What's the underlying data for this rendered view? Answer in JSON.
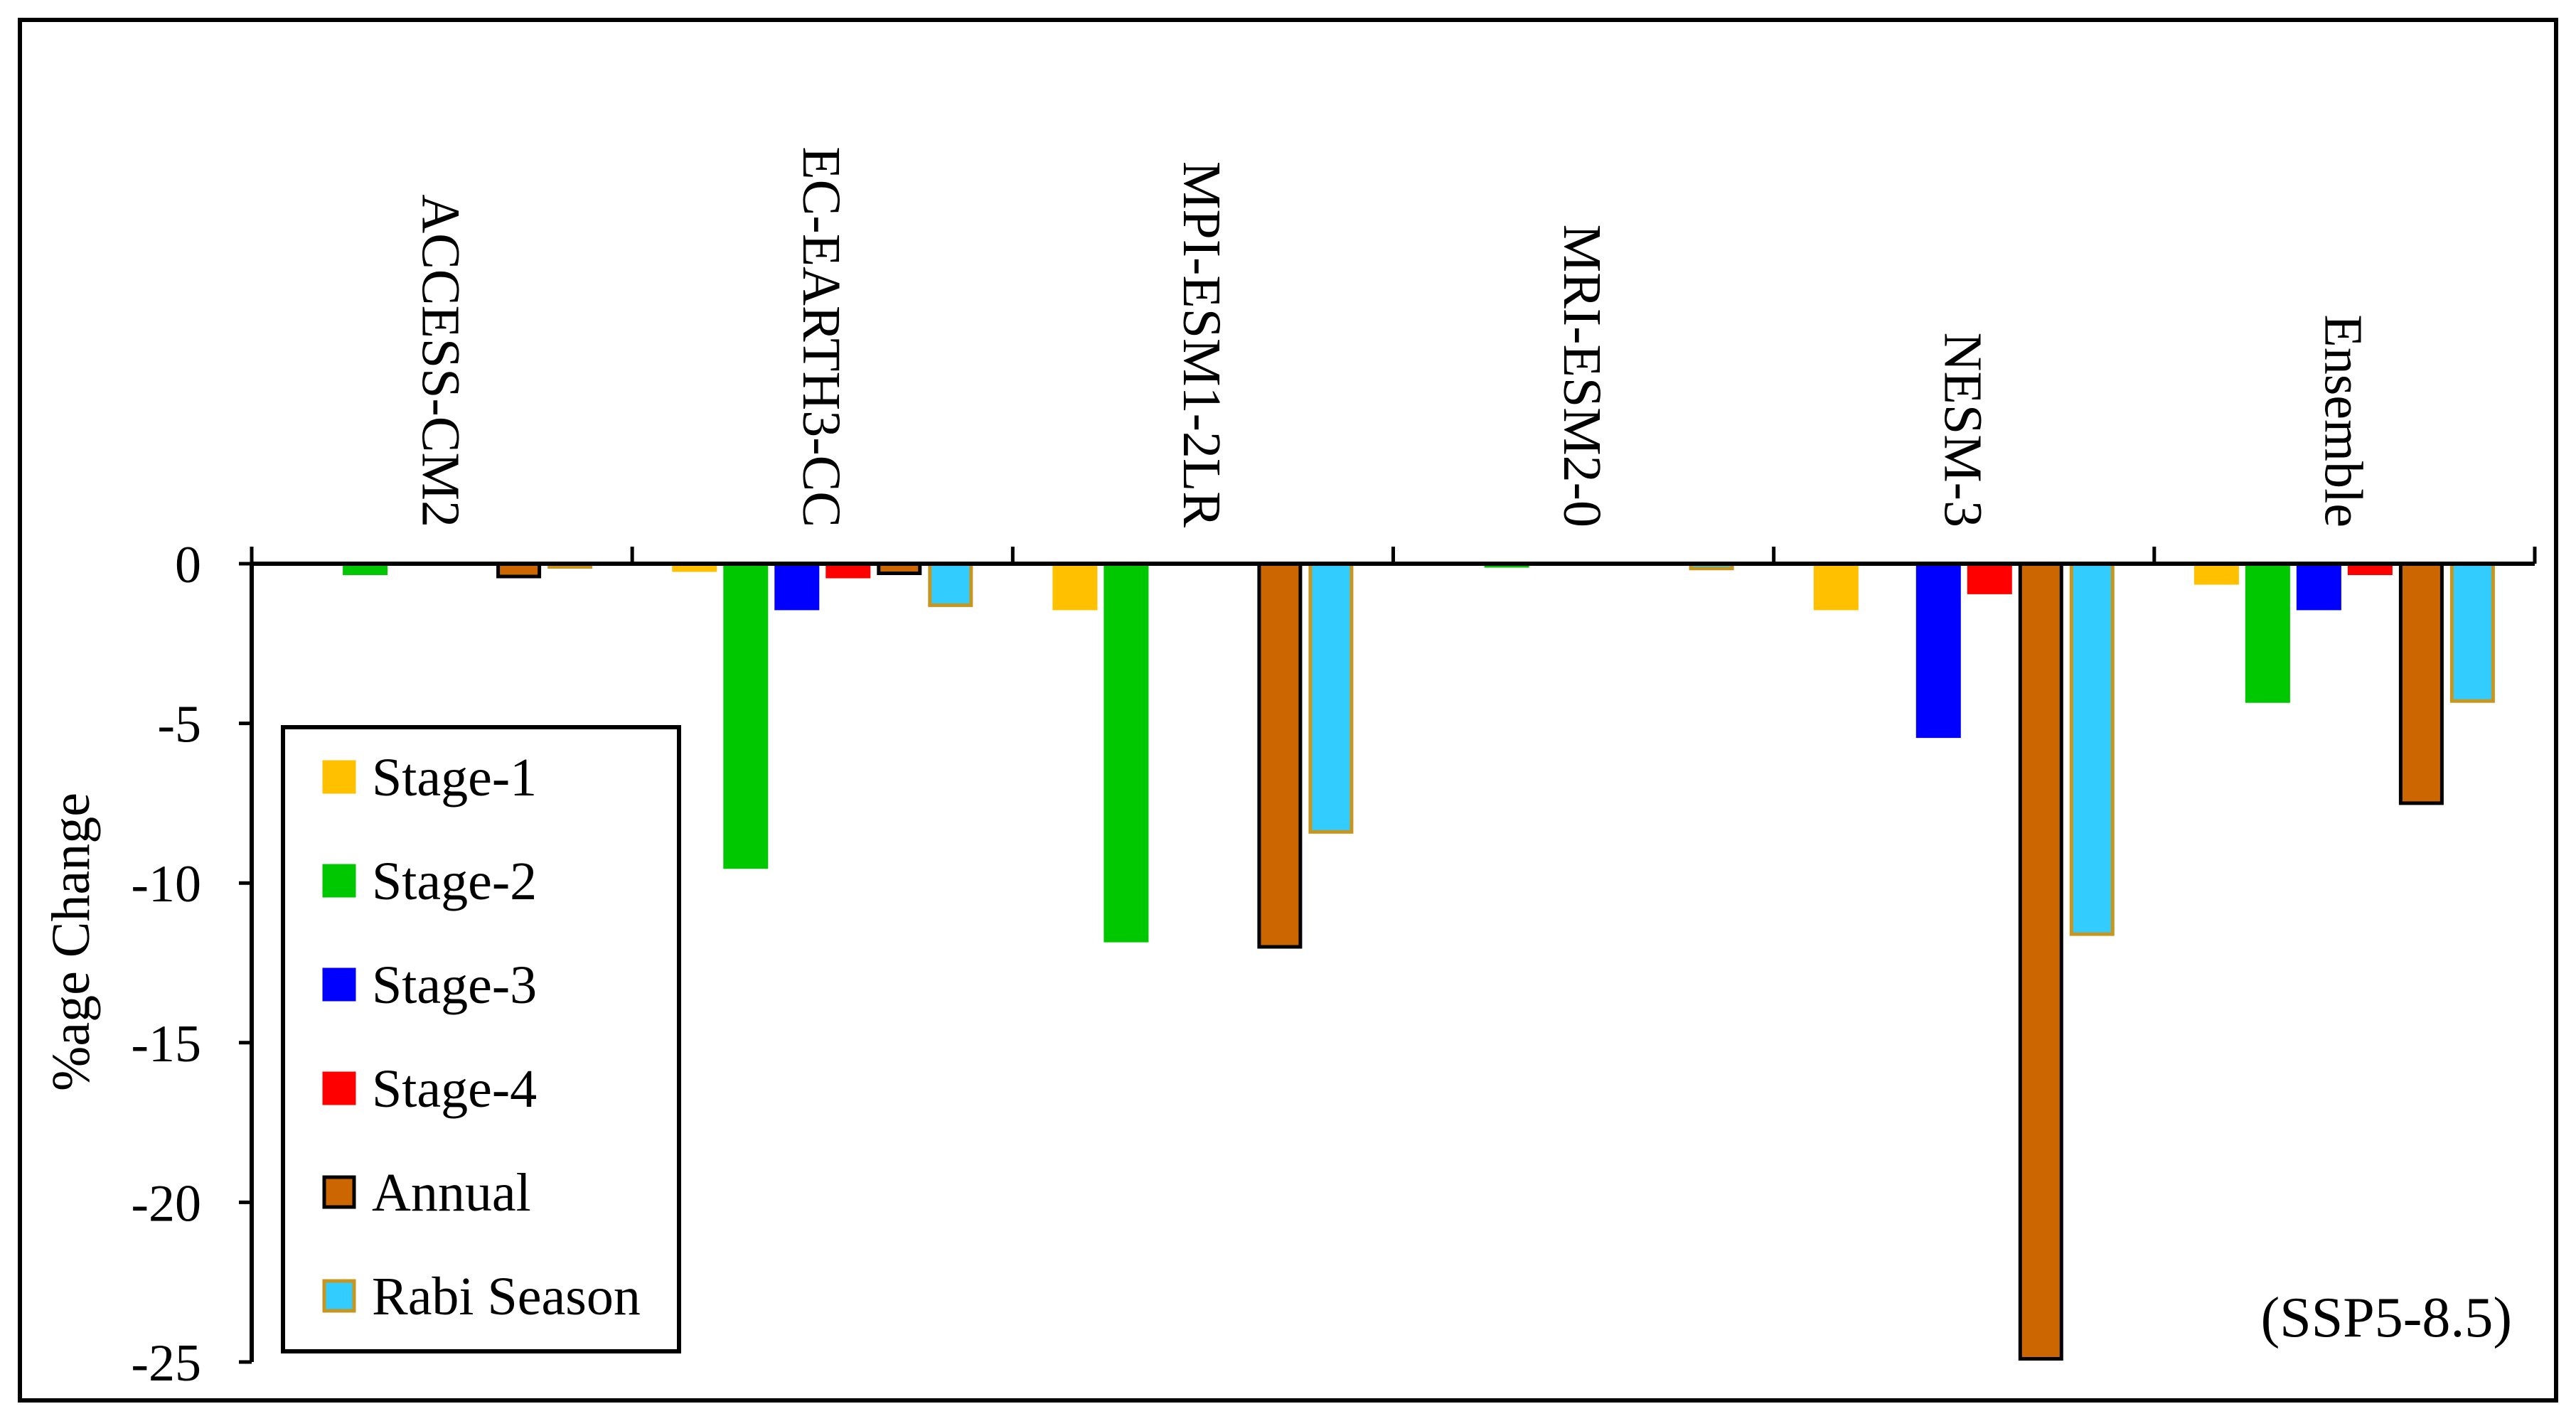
{
  "chart_data": {
    "type": "bar",
    "ylabel": "%age Change",
    "annotation": "(SSP5-8.5)",
    "ylim": [
      -25,
      0
    ],
    "yticks": [
      0,
      -5,
      -10,
      -15,
      -20,
      -25
    ],
    "categories": [
      "ACCESS-CM2",
      "EC-EARTH3-CC",
      "MPI-ESM1-2LR",
      "MRI-ESM2-0",
      "NESM-3",
      "Ensemble"
    ],
    "series": [
      {
        "name": "Stage-1",
        "color": "#FFC000",
        "stroke": "#FFC000",
        "values": [
          0,
          -0.2,
          -1.4,
          0,
          -1.4,
          -0.6
        ]
      },
      {
        "name": "Stage-2",
        "color": "#00C800",
        "stroke": "#00C800",
        "values": [
          -0.3,
          -9.5,
          -11.8,
          -0.05,
          0,
          -4.3
        ]
      },
      {
        "name": "Stage-3",
        "color": "#0000FF",
        "stroke": "#0000FF",
        "values": [
          0,
          -1.4,
          0,
          0,
          -5.4,
          -1.4
        ]
      },
      {
        "name": "Stage-4",
        "color": "#FF0000",
        "stroke": "#FF0000",
        "values": [
          0,
          -0.4,
          0,
          0,
          -0.9,
          -0.3
        ]
      },
      {
        "name": "Annual",
        "color": "#CC6600",
        "stroke": "#000000",
        "values": [
          -0.4,
          -0.3,
          -12,
          0,
          -24.9,
          -7.5
        ]
      },
      {
        "name": "Rabi Season",
        "color": "#33CCFF",
        "stroke": "#C8961E",
        "values": [
          -0.1,
          -1.3,
          -8.4,
          -0.15,
          -11.6,
          -4.3
        ]
      }
    ]
  }
}
